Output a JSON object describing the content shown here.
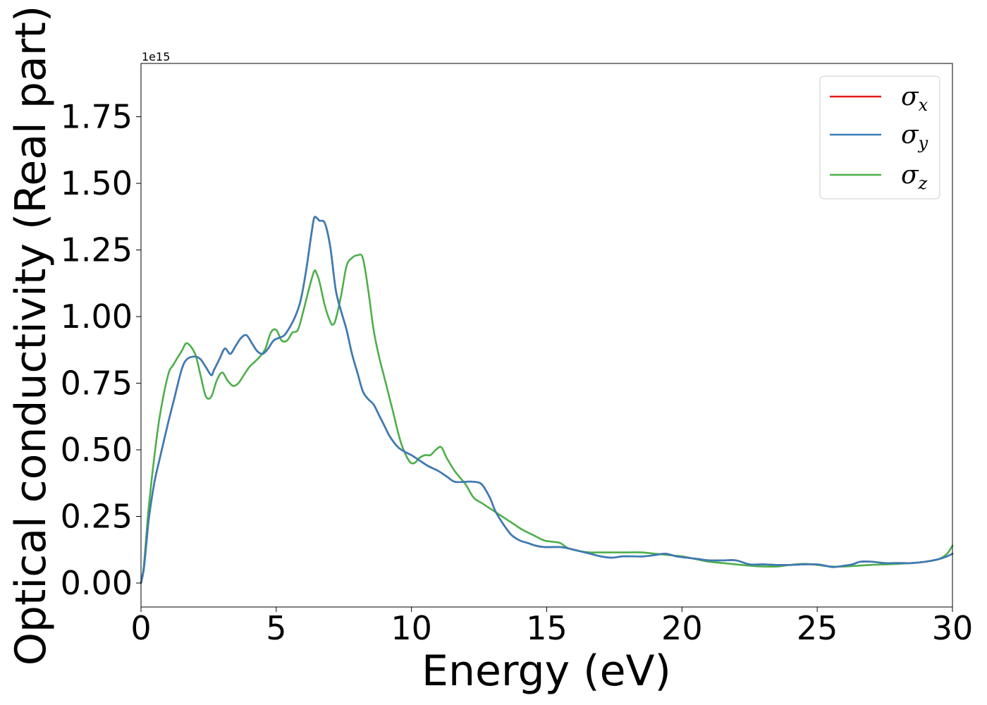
{
  "chart_data": {
    "type": "line",
    "xlabel": "Energy (eV)",
    "ylabel": "Optical conductivity (Real part)",
    "y_offset_text": "1e15",
    "xlim": [
      0,
      30
    ],
    "ylim": [
      -0.09,
      1.95
    ],
    "x_ticks": [
      0,
      5,
      10,
      15,
      20,
      25,
      30
    ],
    "x_tick_labels": [
      "0",
      "5",
      "10",
      "15",
      "20",
      "25",
      "30"
    ],
    "y_ticks": [
      0.0,
      0.25,
      0.5,
      0.75,
      1.0,
      1.25,
      1.5,
      1.75
    ],
    "y_tick_labels": [
      "0.00",
      "0.25",
      "0.50",
      "0.75",
      "1.00",
      "1.25",
      "1.50",
      "1.75"
    ],
    "grid": false,
    "legend_position": "top-right",
    "series": [
      {
        "name": "σx",
        "legend_main": "σ",
        "legend_sub": "x",
        "color": "#e41a1c",
        "x": [
          0,
          0.1,
          0.2,
          0.3,
          0.5,
          0.7,
          1.0,
          1.2,
          1.5,
          1.7,
          2.0,
          2.2,
          2.4,
          2.6,
          2.7,
          2.9,
          3.1,
          3.3,
          3.5,
          3.7,
          3.9,
          4.1,
          4.3,
          4.5,
          4.7,
          4.9,
          5.1,
          5.3,
          5.5,
          5.7,
          5.9,
          6.1,
          6.3,
          6.4,
          6.5,
          6.6,
          6.8,
          7.0,
          7.2,
          7.4,
          7.6,
          7.8,
          8.0,
          8.2,
          8.4,
          8.6,
          8.8,
          9.0,
          9.2,
          9.5,
          9.8,
          10.0,
          10.3,
          10.6,
          11.0,
          11.3,
          11.6,
          12.0,
          12.3,
          12.6,
          12.9,
          13.1,
          13.4,
          13.7,
          14.0,
          14.3,
          14.6,
          14.9,
          15.2,
          15.5,
          15.8,
          16.2,
          16.6,
          17.0,
          17.4,
          17.8,
          18.2,
          18.6,
          19.0,
          19.4,
          19.8,
          20.2,
          20.6,
          21.0,
          21.5,
          22.0,
          22.5,
          23.0,
          23.5,
          24.0,
          24.5,
          25.0,
          25.3,
          25.6,
          26.0,
          26.3,
          26.6,
          27.0,
          27.5,
          28.0,
          28.5,
          29.0,
          29.5,
          29.8,
          30.0
        ],
        "y": [
          0.0,
          0.05,
          0.15,
          0.25,
          0.38,
          0.47,
          0.6,
          0.68,
          0.8,
          0.84,
          0.85,
          0.84,
          0.81,
          0.78,
          0.8,
          0.84,
          0.88,
          0.86,
          0.89,
          0.92,
          0.93,
          0.9,
          0.87,
          0.86,
          0.88,
          0.91,
          0.92,
          0.93,
          0.96,
          1.0,
          1.06,
          1.17,
          1.31,
          1.37,
          1.37,
          1.36,
          1.35,
          1.26,
          1.1,
          1.02,
          0.95,
          0.86,
          0.79,
          0.72,
          0.69,
          0.67,
          0.63,
          0.59,
          0.55,
          0.51,
          0.49,
          0.48,
          0.46,
          0.44,
          0.42,
          0.4,
          0.38,
          0.38,
          0.38,
          0.37,
          0.32,
          0.27,
          0.22,
          0.18,
          0.16,
          0.15,
          0.14,
          0.135,
          0.135,
          0.135,
          0.13,
          0.12,
          0.11,
          0.1,
          0.095,
          0.1,
          0.1,
          0.1,
          0.105,
          0.11,
          0.1,
          0.095,
          0.09,
          0.085,
          0.085,
          0.085,
          0.07,
          0.07,
          0.068,
          0.068,
          0.07,
          0.07,
          0.065,
          0.06,
          0.065,
          0.07,
          0.08,
          0.08,
          0.075,
          0.075,
          0.075,
          0.08,
          0.09,
          0.1,
          0.11
        ]
      },
      {
        "name": "σy",
        "legend_main": "σ",
        "legend_sub": "y",
        "color": "#377eb8",
        "x": [
          0,
          0.1,
          0.2,
          0.3,
          0.5,
          0.7,
          1.0,
          1.2,
          1.5,
          1.7,
          2.0,
          2.2,
          2.4,
          2.6,
          2.7,
          2.9,
          3.1,
          3.3,
          3.5,
          3.7,
          3.9,
          4.1,
          4.3,
          4.5,
          4.7,
          4.9,
          5.1,
          5.3,
          5.5,
          5.7,
          5.9,
          6.1,
          6.3,
          6.4,
          6.5,
          6.6,
          6.8,
          7.0,
          7.2,
          7.4,
          7.6,
          7.8,
          8.0,
          8.2,
          8.4,
          8.6,
          8.8,
          9.0,
          9.2,
          9.5,
          9.8,
          10.0,
          10.3,
          10.6,
          11.0,
          11.3,
          11.6,
          12.0,
          12.3,
          12.6,
          12.9,
          13.1,
          13.4,
          13.7,
          14.0,
          14.3,
          14.6,
          14.9,
          15.2,
          15.5,
          15.8,
          16.2,
          16.6,
          17.0,
          17.4,
          17.8,
          18.2,
          18.6,
          19.0,
          19.4,
          19.8,
          20.2,
          20.6,
          21.0,
          21.5,
          22.0,
          22.5,
          23.0,
          23.5,
          24.0,
          24.5,
          25.0,
          25.3,
          25.6,
          26.0,
          26.3,
          26.6,
          27.0,
          27.5,
          28.0,
          28.5,
          29.0,
          29.5,
          29.8,
          30.0
        ],
        "y": [
          0.0,
          0.05,
          0.15,
          0.25,
          0.38,
          0.47,
          0.6,
          0.68,
          0.8,
          0.84,
          0.85,
          0.84,
          0.81,
          0.78,
          0.8,
          0.84,
          0.88,
          0.86,
          0.89,
          0.92,
          0.93,
          0.9,
          0.87,
          0.86,
          0.88,
          0.91,
          0.92,
          0.93,
          0.96,
          1.0,
          1.06,
          1.17,
          1.31,
          1.37,
          1.37,
          1.36,
          1.35,
          1.26,
          1.1,
          1.02,
          0.95,
          0.86,
          0.79,
          0.72,
          0.69,
          0.67,
          0.63,
          0.59,
          0.55,
          0.51,
          0.49,
          0.48,
          0.46,
          0.44,
          0.42,
          0.4,
          0.38,
          0.38,
          0.38,
          0.37,
          0.32,
          0.27,
          0.22,
          0.18,
          0.16,
          0.15,
          0.14,
          0.135,
          0.135,
          0.135,
          0.13,
          0.12,
          0.11,
          0.1,
          0.095,
          0.1,
          0.1,
          0.1,
          0.105,
          0.11,
          0.1,
          0.095,
          0.09,
          0.085,
          0.085,
          0.085,
          0.07,
          0.07,
          0.068,
          0.068,
          0.07,
          0.07,
          0.065,
          0.06,
          0.065,
          0.07,
          0.08,
          0.08,
          0.075,
          0.075,
          0.075,
          0.08,
          0.09,
          0.1,
          0.11
        ]
      },
      {
        "name": "σz",
        "legend_main": "σ",
        "legend_sub": "z",
        "color": "#4daf4a",
        "x": [
          0,
          0.1,
          0.2,
          0.3,
          0.5,
          0.7,
          1.0,
          1.2,
          1.5,
          1.7,
          2.0,
          2.2,
          2.4,
          2.6,
          2.8,
          3.0,
          3.2,
          3.4,
          3.6,
          3.8,
          4.0,
          4.2,
          4.4,
          4.6,
          4.8,
          5.0,
          5.2,
          5.4,
          5.6,
          5.8,
          6.0,
          6.2,
          6.4,
          6.5,
          6.6,
          6.8,
          7.0,
          7.1,
          7.2,
          7.4,
          7.6,
          7.8,
          8.0,
          8.2,
          8.4,
          8.6,
          8.8,
          9.0,
          9.3,
          9.6,
          9.9,
          10.1,
          10.3,
          10.5,
          10.7,
          10.9,
          11.1,
          11.3,
          11.6,
          12.0,
          12.3,
          12.6,
          12.9,
          13.2,
          13.5,
          13.8,
          14.1,
          14.5,
          14.9,
          15.2,
          15.5,
          15.8,
          16.2,
          16.6,
          17.0,
          17.5,
          18.0,
          18.5,
          19.0,
          19.5,
          20.0,
          20.5,
          21.0,
          21.5,
          22.0,
          22.5,
          23.0,
          23.5,
          24.0,
          24.5,
          25.0,
          25.5,
          26.0,
          26.5,
          27.0,
          27.5,
          28.0,
          28.5,
          29.0,
          29.5,
          29.8,
          30.0
        ],
        "y": [
          0.0,
          0.06,
          0.18,
          0.3,
          0.48,
          0.63,
          0.78,
          0.82,
          0.87,
          0.9,
          0.86,
          0.78,
          0.7,
          0.7,
          0.76,
          0.79,
          0.76,
          0.74,
          0.75,
          0.78,
          0.81,
          0.83,
          0.85,
          0.88,
          0.94,
          0.95,
          0.91,
          0.91,
          0.94,
          0.95,
          1.02,
          1.1,
          1.17,
          1.16,
          1.13,
          1.04,
          0.98,
          0.97,
          0.99,
          1.08,
          1.19,
          1.22,
          1.23,
          1.22,
          1.1,
          0.95,
          0.85,
          0.77,
          0.65,
          0.53,
          0.46,
          0.45,
          0.47,
          0.48,
          0.48,
          0.5,
          0.51,
          0.47,
          0.42,
          0.37,
          0.32,
          0.3,
          0.28,
          0.26,
          0.24,
          0.22,
          0.2,
          0.18,
          0.16,
          0.155,
          0.15,
          0.13,
          0.12,
          0.115,
          0.115,
          0.115,
          0.115,
          0.115,
          0.11,
          0.105,
          0.1,
          0.09,
          0.08,
          0.075,
          0.07,
          0.065,
          0.062,
          0.062,
          0.068,
          0.072,
          0.068,
          0.062,
          0.062,
          0.065,
          0.068,
          0.07,
          0.072,
          0.075,
          0.08,
          0.09,
          0.11,
          0.14
        ]
      }
    ]
  }
}
